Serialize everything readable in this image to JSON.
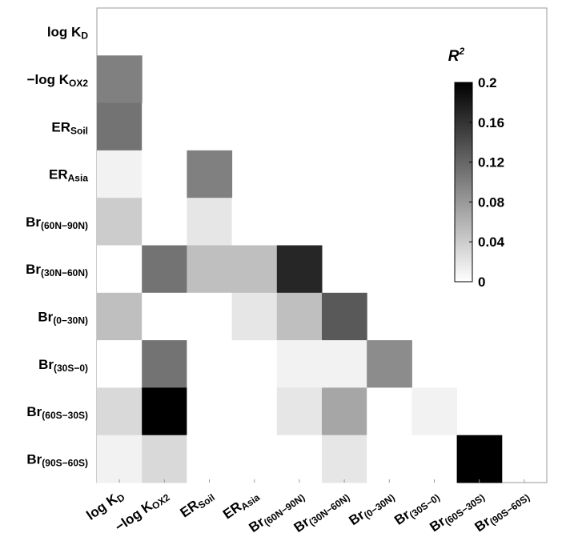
{
  "chart_data": {
    "type": "heatmap",
    "colorbar_title": {
      "main": "R",
      "sup": "2"
    },
    "categories": [
      {
        "main": "log K",
        "sub": "D"
      },
      {
        "main": "−log K",
        "sub": "OX2"
      },
      {
        "main": "ER",
        "sub": "Soil"
      },
      {
        "main": "ER",
        "sub": "Asia"
      },
      {
        "main": "Br",
        "sub": "(60N−90N)"
      },
      {
        "main": "Br",
        "sub": "(30N−60N)"
      },
      {
        "main": "Br",
        "sub": "(0−30N)"
      },
      {
        "main": "Br",
        "sub": "(30S−0)"
      },
      {
        "main": "Br",
        "sub": "(60S−30S)"
      },
      {
        "main": "Br",
        "sub": "(90S−60S)"
      }
    ],
    "values": [
      [
        null,
        null,
        null,
        null,
        null,
        null,
        null,
        null,
        null,
        null
      ],
      [
        0.1,
        null,
        null,
        null,
        null,
        null,
        null,
        null,
        null,
        null
      ],
      [
        0.11,
        0,
        null,
        null,
        null,
        null,
        null,
        null,
        null,
        null
      ],
      [
        0.01,
        0,
        0.1,
        null,
        null,
        null,
        null,
        null,
        null,
        null
      ],
      [
        0.04,
        0,
        0.02,
        0,
        null,
        null,
        null,
        null,
        null,
        null
      ],
      [
        0,
        0.11,
        0.05,
        0.05,
        0.17,
        null,
        null,
        null,
        null,
        null
      ],
      [
        0.05,
        0,
        0,
        0.02,
        0.05,
        0.13,
        null,
        null,
        null,
        null
      ],
      [
        0,
        0.11,
        0,
        0,
        0.01,
        0.01,
        0.09,
        null,
        null,
        null
      ],
      [
        0.03,
        0.2,
        0,
        0,
        0.02,
        0.07,
        0,
        0.01,
        null,
        null
      ],
      [
        0.01,
        0.03,
        0,
        0,
        0,
        0.02,
        0,
        0,
        0.2,
        null
      ]
    ],
    "clim": [
      0,
      0.2
    ],
    "cticks": [
      0,
      0.04,
      0.08,
      0.12,
      0.16,
      0.2
    ],
    "colors": [
      "#ffffff",
      "#000000"
    ]
  }
}
